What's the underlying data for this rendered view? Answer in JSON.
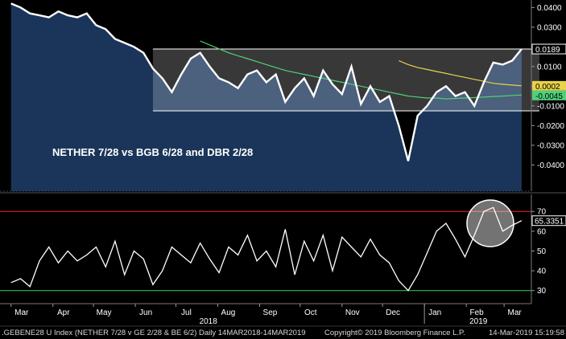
{
  "chart_data": [
    {
      "type": "line",
      "panel": "spread",
      "title": "",
      "annotation": "NETHER 7/28 vs BGB 6/28 and DBR 2/28",
      "x": [
        "2018-03-01",
        "2018-03-08",
        "2018-03-15",
        "2018-03-22",
        "2018-03-29",
        "2018-04-05",
        "2018-04-12",
        "2018-04-19",
        "2018-04-26",
        "2018-05-03",
        "2018-05-10",
        "2018-05-17",
        "2018-05-24",
        "2018-05-31",
        "2018-06-07",
        "2018-06-14",
        "2018-06-21",
        "2018-06-28",
        "2018-07-05",
        "2018-07-12",
        "2018-07-19",
        "2018-07-26",
        "2018-08-02",
        "2018-08-09",
        "2018-08-16",
        "2018-08-23",
        "2018-08-30",
        "2018-09-06",
        "2018-09-13",
        "2018-09-20",
        "2018-09-27",
        "2018-10-04",
        "2018-10-11",
        "2018-10-18",
        "2018-10-25",
        "2018-11-01",
        "2018-11-08",
        "2018-11-15",
        "2018-11-22",
        "2018-11-29",
        "2018-12-06",
        "2018-12-13",
        "2018-12-20",
        "2018-12-27",
        "2019-01-03",
        "2019-01-10",
        "2019-01-17",
        "2019-01-24",
        "2019-01-31",
        "2019-02-07",
        "2019-02-14",
        "2019-02-21",
        "2019-02-28",
        "2019-03-07",
        "2019-03-14"
      ],
      "series": [
        {
          "values": [
            0.042,
            0.04,
            0.037,
            0.036,
            0.035,
            0.038,
            0.036,
            0.035,
            0.037,
            0.031,
            0.029,
            0.024,
            0.022,
            0.02,
            0.017,
            0.009,
            0.004,
            -0.003,
            0.006,
            0.014,
            0.017,
            0.01,
            0.004,
            0.002,
            -0.001,
            0.006,
            0.008,
            0.002,
            0.006,
            -0.008,
            -0.001,
            0.004,
            -0.005,
            0.008,
            0.001,
            -0.004,
            0.01,
            -0.009,
            0.0,
            -0.008,
            -0.005,
            -0.02,
            -0.038,
            -0.015,
            -0.01,
            -0.003,
            0.0,
            -0.005,
            -0.003,
            -0.01,
            0.002,
            0.012,
            0.011,
            0.013,
            0.0189
          ],
          "color": "#ffffff"
        },
        {
          "values": [
            null,
            null,
            null,
            null,
            null,
            null,
            null,
            null,
            null,
            null,
            null,
            null,
            null,
            null,
            null,
            null,
            null,
            null,
            null,
            null,
            0.023,
            0.021,
            0.019,
            0.017,
            0.0155,
            0.014,
            0.0125,
            0.011,
            0.0095,
            0.008,
            0.007,
            0.006,
            0.005,
            0.004,
            0.003,
            0.002,
            0.001,
            0.0,
            -0.001,
            -0.002,
            -0.003,
            -0.004,
            -0.005,
            -0.0055,
            -0.006,
            -0.006,
            -0.0065,
            -0.0062,
            -0.006,
            -0.0058,
            -0.0055,
            -0.0052,
            -0.005,
            -0.0047,
            -0.0045
          ],
          "color": "#4fd07a"
        },
        {
          "values": [
            null,
            null,
            null,
            null,
            null,
            null,
            null,
            null,
            null,
            null,
            null,
            null,
            null,
            null,
            null,
            null,
            null,
            null,
            null,
            null,
            null,
            null,
            null,
            null,
            null,
            null,
            null,
            null,
            null,
            null,
            null,
            null,
            null,
            null,
            null,
            null,
            null,
            null,
            null,
            null,
            null,
            0.013,
            0.011,
            0.0095,
            0.0085,
            0.0075,
            0.0065,
            0.0055,
            0.0045,
            0.0035,
            0.0025,
            0.0015,
            0.001,
            0.0006,
            0.0002
          ],
          "color": "#e8d24a"
        }
      ],
      "channel_high": 0.0189,
      "channel_low": -0.0125,
      "ylim": [
        -0.046,
        0.043
      ],
      "yticks": [
        "0.0400",
        "0.0300",
        "0.0200",
        "0.0100",
        "0.0000",
        "-0.0100",
        "-0.0200",
        "-0.0300",
        "-0.0400"
      ],
      "last_labels": [
        {
          "text": "0.0189",
          "bg": "#000000",
          "fg": "#ffffff",
          "value": 0.0189
        },
        {
          "text": "0.0002",
          "bg": "#e8d24a",
          "fg": "#000000",
          "value": 0.0002
        },
        {
          "text": "-0.0045",
          "bg": "#4fd07a",
          "fg": "#000000",
          "value": -0.0045
        }
      ]
    },
    {
      "type": "line",
      "panel": "rsi",
      "title": "",
      "x": [
        "2018-03-01",
        "2018-03-08",
        "2018-03-15",
        "2018-03-22",
        "2018-03-29",
        "2018-04-05",
        "2018-04-12",
        "2018-04-19",
        "2018-04-26",
        "2018-05-03",
        "2018-05-10",
        "2018-05-17",
        "2018-05-24",
        "2018-05-31",
        "2018-06-07",
        "2018-06-14",
        "2018-06-21",
        "2018-06-28",
        "2018-07-05",
        "2018-07-12",
        "2018-07-19",
        "2018-07-26",
        "2018-08-02",
        "2018-08-09",
        "2018-08-16",
        "2018-08-23",
        "2018-08-30",
        "2018-09-06",
        "2018-09-13",
        "2018-09-20",
        "2018-09-27",
        "2018-10-04",
        "2018-10-11",
        "2018-10-18",
        "2018-10-25",
        "2018-11-01",
        "2018-11-08",
        "2018-11-15",
        "2018-11-22",
        "2018-11-29",
        "2018-12-06",
        "2018-12-13",
        "2018-12-20",
        "2018-12-27",
        "2019-01-03",
        "2019-01-10",
        "2019-01-17",
        "2019-01-24",
        "2019-01-31",
        "2019-02-07",
        "2019-02-14",
        "2019-02-21",
        "2019-02-28",
        "2019-03-07",
        "2019-03-14"
      ],
      "series": [
        {
          "values": [
            34,
            36,
            32,
            45,
            52,
            44,
            50,
            45,
            48,
            52,
            42,
            55,
            38,
            50,
            46,
            33,
            40,
            52,
            48,
            44,
            54,
            46,
            39,
            52,
            48,
            58,
            45,
            50,
            42,
            61,
            38,
            55,
            45,
            58,
            40,
            57,
            52,
            47,
            56,
            48,
            44,
            35,
            30,
            38,
            49,
            60,
            64,
            56,
            47,
            58,
            70,
            72,
            60,
            63,
            65.3351
          ],
          "color": "#ffffff"
        }
      ],
      "overbought": 70,
      "oversold": 30,
      "ylim": [
        25,
        77
      ],
      "yticks": [
        "70",
        "60",
        "50",
        "40",
        "30"
      ],
      "last_label": {
        "text": "65.3351",
        "value": 65.3351
      }
    }
  ],
  "x_axis": {
    "months": [
      "Mar",
      "Apr",
      "May",
      "Jun",
      "Jul",
      "Aug",
      "Sep",
      "Oct",
      "Nov",
      "Dec",
      "Jan",
      "Feb",
      "Mar"
    ],
    "years": [
      "2018",
      "2019"
    ]
  },
  "footer": {
    "left": ".GEBENE28 U Index (NETHER 7/28 v GE 2/28 & BE 6/2)  Daily 14MAR2018-14MAR2019",
    "copyright": "Copyright© 2019 Bloomberg Finance L.P.",
    "timestamp": "14-Mar-2019 15:19:58"
  }
}
